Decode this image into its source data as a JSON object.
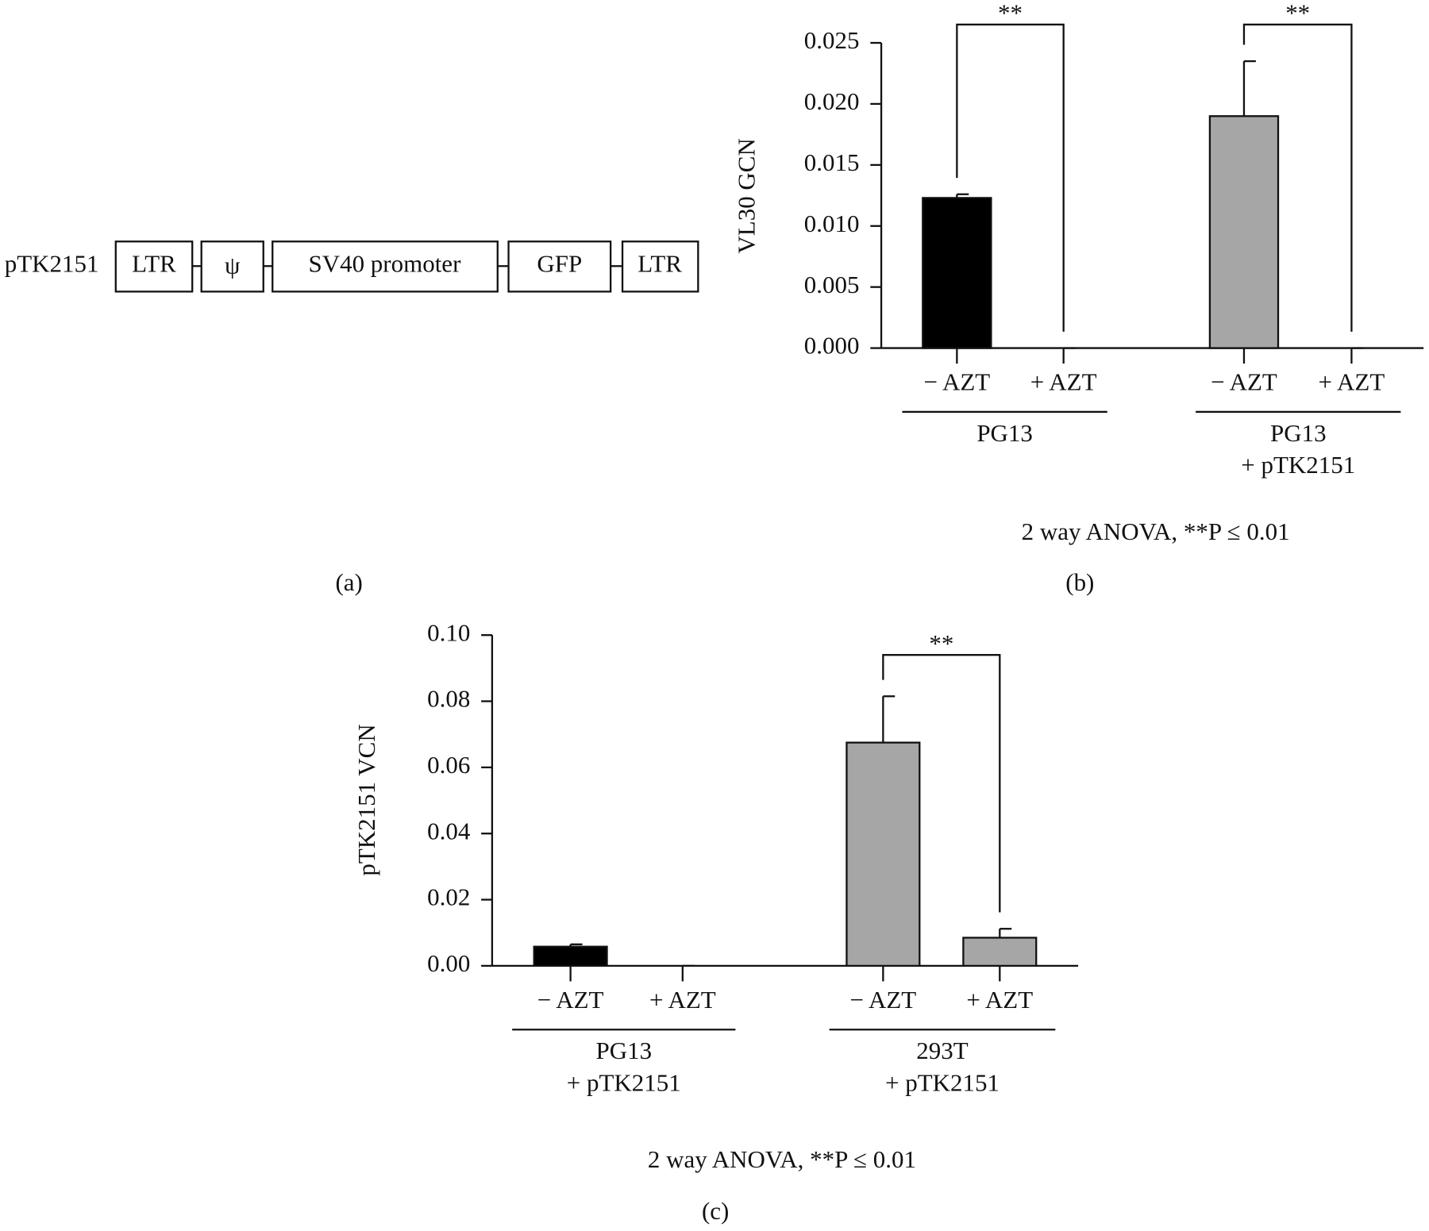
{
  "diagram": {
    "label": "pTK2151",
    "elements": [
      "LTR",
      "ψ",
      "SV40 promoter",
      "GFP",
      "LTR"
    ],
    "panel": "(a)"
  },
  "chart_data": [
    {
      "type": "bar",
      "panel": "(b)",
      "ylabel": "VL30 GCN",
      "annotation": "2 way ANOVA, **P ≤ 0.01",
      "categories": [
        "− AZT",
        "+ AZT",
        "− AZT",
        "+ AZT"
      ],
      "groups": [
        [
          "PG13"
        ],
        [
          "PG13",
          "+ pTK2151"
        ]
      ],
      "values": [
        0.0123,
        0,
        0.019,
        0
      ],
      "errors": [
        0.0003,
        0,
        0.0045,
        0
      ],
      "colors": [
        "#000000",
        "#000000",
        "#a6a6a6",
        "#a6a6a6"
      ],
      "ylim": [
        0,
        0.025
      ],
      "yticks": [
        {
          "value": 0,
          "label": "0.000"
        },
        0.005,
        {
          "value": 0.01,
          "label": "0.010"
        },
        0.015,
        {
          "value": 0.02,
          "label": "0.020"
        },
        0.025
      ],
      "significance": [
        {
          "bars": [
            0,
            1
          ],
          "level": 0.0265,
          "label": "**"
        },
        {
          "bars": [
            2,
            3
          ],
          "level": 0.0265,
          "label": "**"
        }
      ]
    },
    {
      "type": "bar",
      "panel": "(c)",
      "ylabel": "pTK2151 VCN",
      "annotation": "2 way ANOVA, **P ≤ 0.01",
      "categories": [
        "− AZT",
        "+ AZT",
        "− AZT",
        "+ AZT"
      ],
      "groups": [
        [
          "PG13",
          "+ pTK2151"
        ],
        [
          "293T",
          "+ pTK2151"
        ]
      ],
      "values": [
        0.0058,
        0,
        0.0675,
        0.0085
      ],
      "errors": [
        0.0007,
        0,
        0.014,
        0.0027
      ],
      "colors": [
        "#000000",
        "#000000",
        "#a6a6a6",
        "#a6a6a6"
      ],
      "ylim": [
        0,
        0.1
      ],
      "yticks": [
        {
          "value": 0,
          "label": "0.00"
        },
        0.02,
        0.04,
        0.06,
        0.08,
        {
          "value": 0.1,
          "label": "0.10"
        }
      ],
      "significance": [
        {
          "bars": [
            2,
            3
          ],
          "level": 0.094,
          "label": "**"
        }
      ]
    }
  ]
}
